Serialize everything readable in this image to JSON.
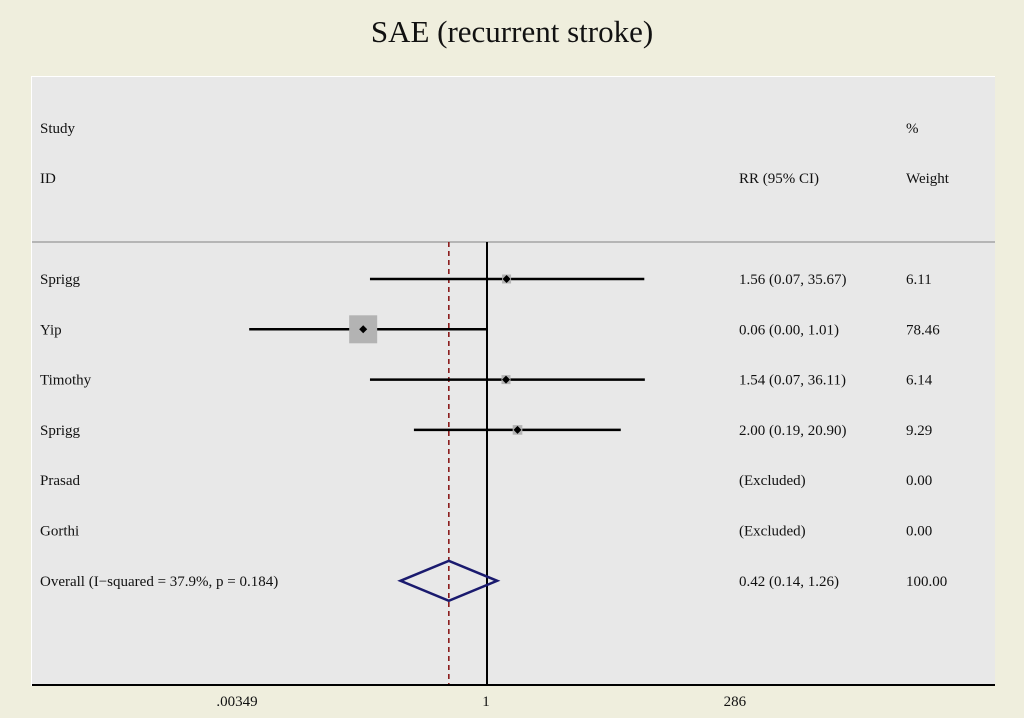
{
  "chart_data": {
    "type": "forest",
    "title": "SAE (recurrent stroke)",
    "header": {
      "col1_top": "Study",
      "col1_bottom": "ID",
      "col2": "RR (95% CI)",
      "col3_top": "%",
      "col3_bottom": "Weight"
    },
    "x_scale": "log",
    "x_range": [
      0.00349,
      286
    ],
    "x_ticks": [
      {
        "value": 0.00349,
        "label": ".00349"
      },
      {
        "value": 1,
        "label": "1"
      },
      {
        "value": 286,
        "label": "286"
      }
    ],
    "null_line": 1,
    "overall_line": 0.42,
    "studies": [
      {
        "id": "Sprigg",
        "rr": 1.56,
        "lo": 0.07,
        "hi": 35.67,
        "ci_text": "1.56 (0.07, 35.67)",
        "weight": 6.11,
        "weight_text": "6.11"
      },
      {
        "id": "Yip",
        "rr": 0.06,
        "lo": 0.0,
        "hi": 1.01,
        "lo_plot": 0.0045,
        "ci_text": "0.06 (0.00, 1.01)",
        "weight": 78.46,
        "weight_text": "78.46"
      },
      {
        "id": "Timothy",
        "rr": 1.54,
        "lo": 0.07,
        "hi": 36.11,
        "ci_text": "1.54 (0.07, 36.11)",
        "weight": 6.14,
        "weight_text": "6.14"
      },
      {
        "id": "Sprigg",
        "rr": 2.0,
        "lo": 0.19,
        "hi": 20.9,
        "ci_text": "2.00 (0.19, 20.90)",
        "weight": 9.29,
        "weight_text": "9.29"
      },
      {
        "id": "Prasad",
        "excluded": true,
        "ci_text": "(Excluded)",
        "weight": 0.0,
        "weight_text": "0.00"
      },
      {
        "id": "Gorthi",
        "excluded": true,
        "ci_text": "(Excluded)",
        "weight": 0.0,
        "weight_text": "0.00"
      }
    ],
    "overall": {
      "label": "Overall  (I−squared = 37.9%, p = 0.184)",
      "rr": 0.42,
      "lo": 0.14,
      "hi": 1.26,
      "ci_text": "0.42 (0.14, 1.26)",
      "weight_text": "100.00"
    },
    "colors": {
      "background": "#efeedd",
      "plot_bg": "#e8e8e8",
      "weight_box": "#b3b3b3",
      "diamond": "#1a1a6e",
      "overall_line": "#8b1a1a",
      "line": "#000000"
    }
  }
}
